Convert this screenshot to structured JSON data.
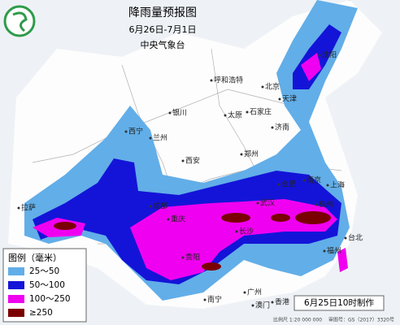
{
  "header": {
    "title": "降雨量预报图",
    "subtitle": "6月26日-7月1日",
    "issuer": "中央气象台"
  },
  "legend": {
    "title": "图例（毫米）",
    "items": [
      {
        "label": "25～50",
        "color": "#62aee8"
      },
      {
        "label": "50～100",
        "color": "#1414d8"
      },
      {
        "label": "100～250",
        "color": "#f000f0"
      },
      {
        "label": "≥250",
        "color": "#7a0000"
      }
    ]
  },
  "cities": [
    "呼和浩特",
    "北京",
    "天津",
    "石家庄",
    "太原",
    "济南",
    "银川",
    "兰州",
    "西宁",
    "西安",
    "郑州",
    "合肥",
    "南京",
    "上海",
    "成都",
    "重庆",
    "武汉",
    "长沙",
    "杭州",
    "贵阳",
    "拉萨",
    "南宁",
    "广州",
    "香港",
    "澳门",
    "福州",
    "台北",
    "沈阳"
  ],
  "footer": {
    "made": "6月25日10时制作",
    "scale": "比例尺 1:20 000 000",
    "approval": "审图号：GS（2017）3320号"
  }
}
